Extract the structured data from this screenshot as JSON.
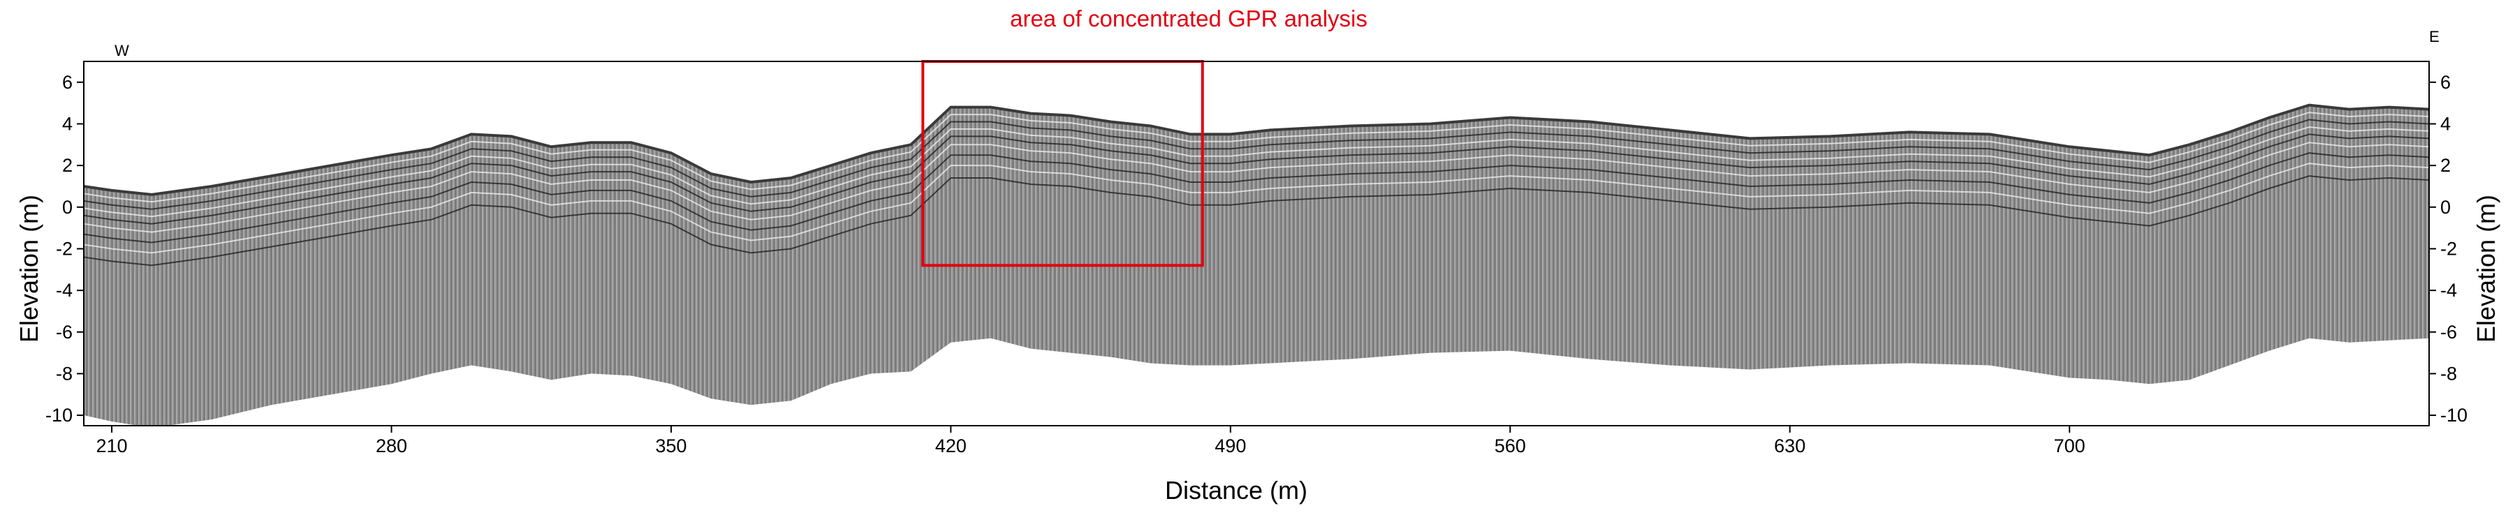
{
  "chart_data": {
    "type": "area",
    "title": "",
    "xlabel": "Distance (m)",
    "ylabel": "Elevation (m)",
    "ylabel_right": "Elevation (m)",
    "xlim": [
      203,
      790
    ],
    "ylim": [
      -10.5,
      7
    ],
    "x_ticks": [
      210,
      280,
      350,
      420,
      490,
      560,
      630,
      700
    ],
    "y_ticks": [
      6,
      4,
      2,
      0,
      -2,
      -4,
      -6,
      -8,
      -10
    ],
    "grid": false,
    "corner_labels": {
      "left": "W",
      "right": "E"
    },
    "colors": {
      "radargram": "#8a8a8a",
      "annotation": "#e4000f"
    },
    "series": [
      {
        "x": [
          203,
          210,
          220,
          235,
          250,
          265,
          280,
          290,
          300,
          310,
          320,
          330,
          340,
          350,
          360,
          370,
          380,
          390,
          400,
          410,
          420,
          430,
          440,
          450,
          460,
          470,
          480,
          490,
          500,
          520,
          540,
          560,
          580,
          600,
          620,
          640,
          660,
          680,
          700,
          710,
          720,
          730,
          740,
          750,
          760,
          770,
          780,
          790
        ],
        "y": [
          1.0,
          0.8,
          0.6,
          1.0,
          1.5,
          2.0,
          2.5,
          2.8,
          3.5,
          3.4,
          2.9,
          3.1,
          3.1,
          2.6,
          1.6,
          1.2,
          1.4,
          2.0,
          2.6,
          3.0,
          4.8,
          4.8,
          4.5,
          4.4,
          4.1,
          3.9,
          3.5,
          3.5,
          3.7,
          3.9,
          4.0,
          4.3,
          4.1,
          3.7,
          3.3,
          3.4,
          3.6,
          3.5,
          2.9,
          2.7,
          2.5,
          3.0,
          3.6,
          4.3,
          4.9,
          4.7,
          4.8,
          4.7
        ]
      },
      {
        "x": [
          203,
          210,
          220,
          235,
          250,
          265,
          280,
          290,
          300,
          310,
          320,
          330,
          340,
          350,
          360,
          370,
          380,
          390,
          400,
          410,
          420,
          430,
          440,
          450,
          460,
          470,
          480,
          490,
          500,
          520,
          540,
          560,
          580,
          600,
          620,
          640,
          660,
          680,
          700,
          710,
          720,
          730,
          740,
          750,
          760,
          770,
          780,
          790
        ],
        "y": [
          -10.0,
          -10.3,
          -10.6,
          -10.2,
          -9.5,
          -9.0,
          -8.5,
          -8.0,
          -7.6,
          -7.9,
          -8.3,
          -8.0,
          -8.1,
          -8.5,
          -9.2,
          -9.5,
          -9.3,
          -8.5,
          -8.0,
          -7.9,
          -6.5,
          -6.3,
          -6.8,
          -7.0,
          -7.2,
          -7.5,
          -7.6,
          -7.6,
          -7.5,
          -7.3,
          -7.0,
          -6.9,
          -7.3,
          -7.6,
          -7.8,
          -7.6,
          -7.5,
          -7.6,
          -8.2,
          -8.3,
          -8.5,
          -8.3,
          -7.6,
          -6.9,
          -6.3,
          -6.5,
          -6.4,
          -6.3
        ]
      }
    ],
    "annotations": [
      {
        "text": "area of concentrated GPR analysis",
        "box": {
          "x0": 413,
          "x1": 483,
          "y0": -2.8,
          "y1": 7
        }
      }
    ]
  }
}
